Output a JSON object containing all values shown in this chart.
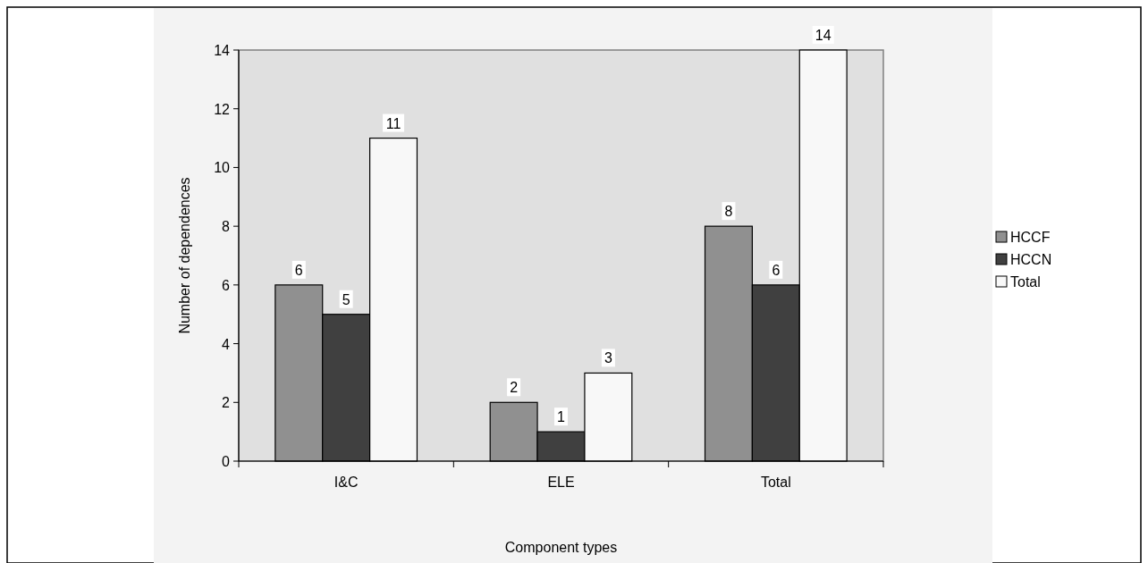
{
  "chart_data": {
    "type": "bar",
    "xlabel": "Component types",
    "ylabel": "Number of dependences",
    "categories": [
      "I&C",
      "ELE",
      "Total"
    ],
    "series": [
      {
        "name": "HCCF",
        "color": "#909090",
        "values": [
          6,
          2,
          8
        ]
      },
      {
        "name": "HCCN",
        "color": "#404040",
        "values": [
          5,
          1,
          6
        ]
      },
      {
        "name": "Total",
        "color": "#f8f8f8",
        "values": [
          11,
          3,
          14
        ]
      }
    ],
    "ylim": [
      0,
      14
    ],
    "yticks": [
      0,
      2,
      4,
      6,
      8,
      10,
      12,
      14
    ],
    "grid": false,
    "legend": "right",
    "data_labels": true
  }
}
